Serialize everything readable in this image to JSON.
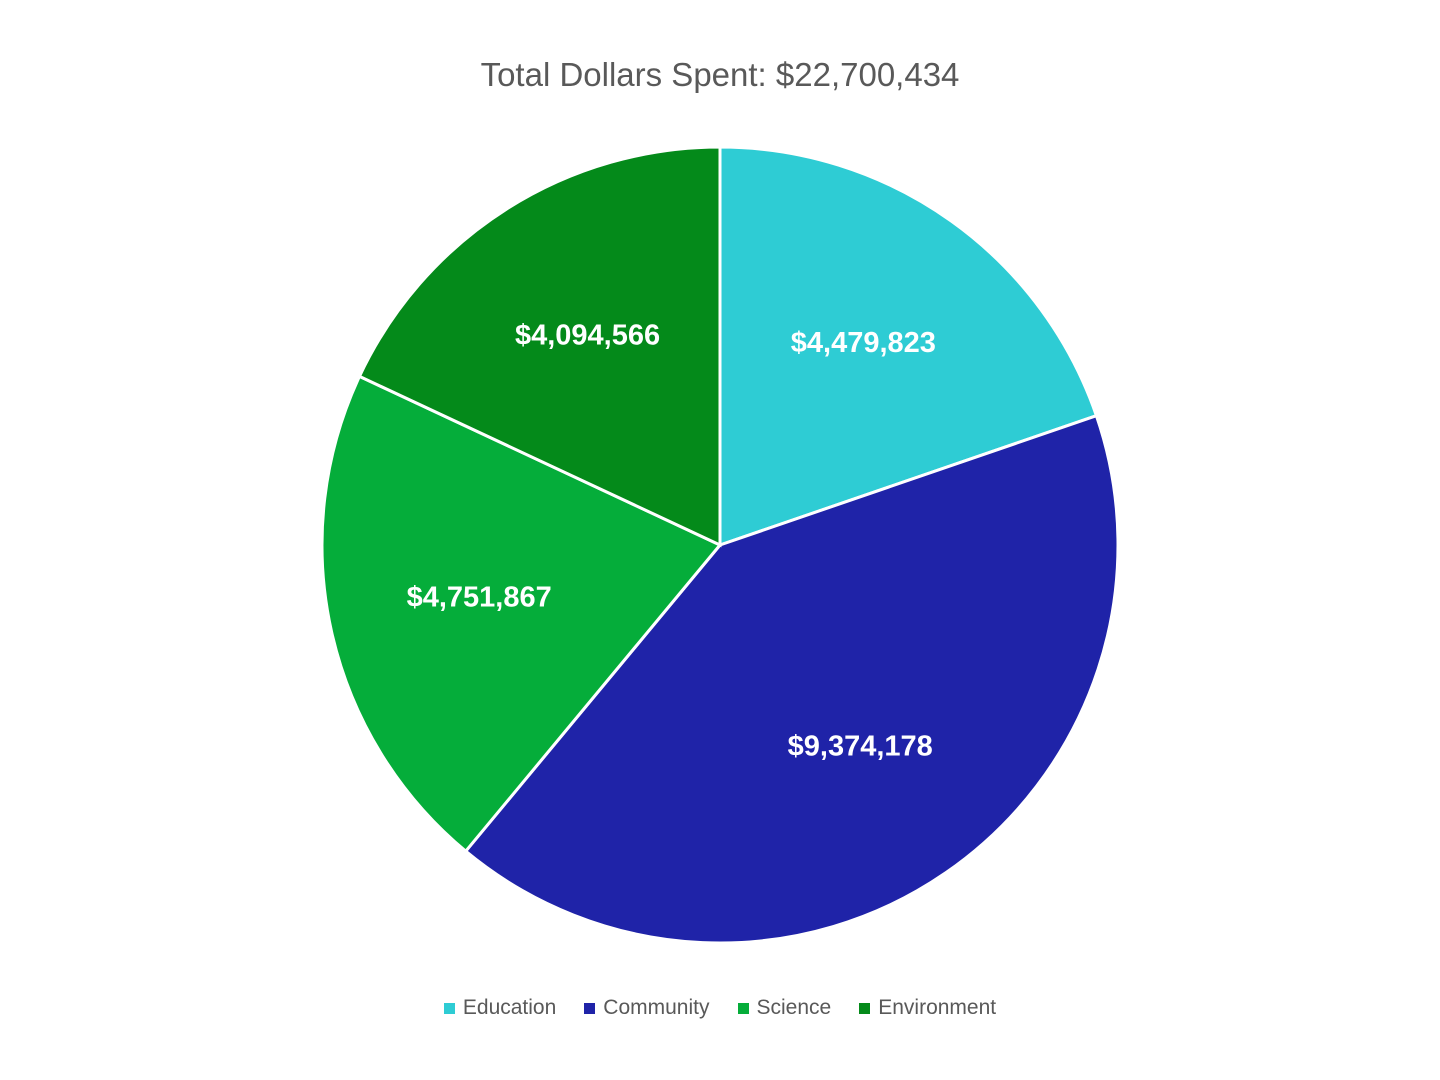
{
  "chart_data": {
    "type": "pie",
    "title": "Total Dollars Spent: $22,700,434",
    "categories": [
      "Education",
      "Community",
      "Science",
      "Environment"
    ],
    "values": [
      4479823,
      9374178,
      4751867,
      4094566
    ],
    "data_labels": [
      "$4,479,823",
      "$9,374,178",
      "$4,751,867",
      "$4,094,566"
    ],
    "colors": [
      "#2ECCD4",
      "#1F23A8",
      "#05AD3A",
      "#048A1A"
    ],
    "start_angle": "12 o'clock",
    "direction": "clockwise",
    "legend_position": "bottom"
  }
}
